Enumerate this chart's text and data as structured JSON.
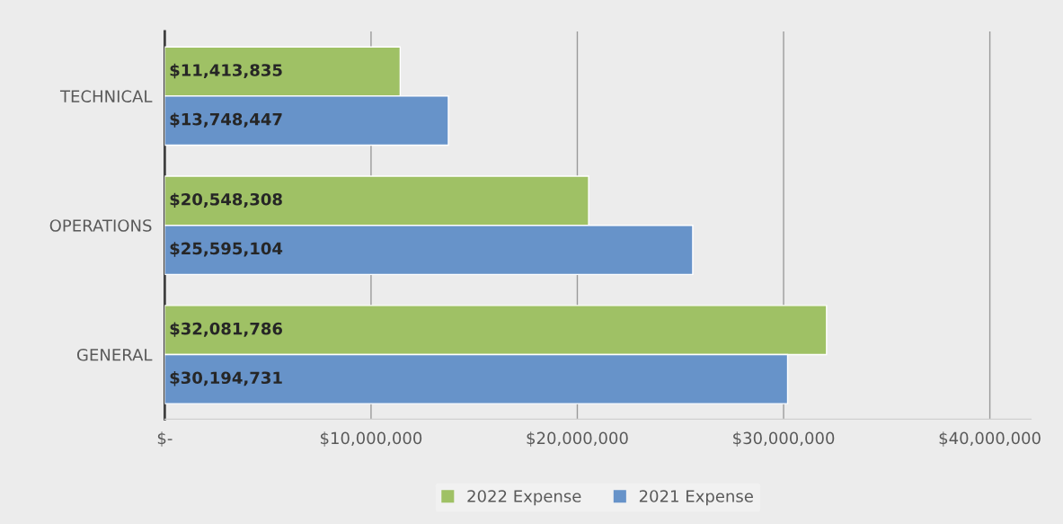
{
  "chart_data": {
    "type": "bar",
    "orientation": "horizontal",
    "categories": [
      "TECHNICAL",
      "OPERATIONS",
      "GENERAL"
    ],
    "series": [
      {
        "name": "2022 Expense",
        "color": "#9fc165",
        "values": [
          11413835,
          20548308,
          32081786
        ],
        "value_labels": [
          "$11,413,835",
          "$20,548,308",
          "$32,081,786"
        ]
      },
      {
        "name": "2021 Expense",
        "color": "#6793c9",
        "values": [
          13748447,
          25595104,
          30194731
        ],
        "value_labels": [
          "$13,748,447",
          "$25,595,104",
          "$30,194,731"
        ]
      }
    ],
    "xlim": [
      0,
      42000000
    ],
    "xticks": [
      {
        "value": 0,
        "label": "$-"
      },
      {
        "value": 10000000,
        "label": "$10,000,000"
      },
      {
        "value": 20000000,
        "label": "$20,000,000"
      },
      {
        "value": 30000000,
        "label": "$30,000,000"
      },
      {
        "value": 40000000,
        "label": "$40,000,000"
      }
    ],
    "grid": "x",
    "legend": "bottom"
  }
}
